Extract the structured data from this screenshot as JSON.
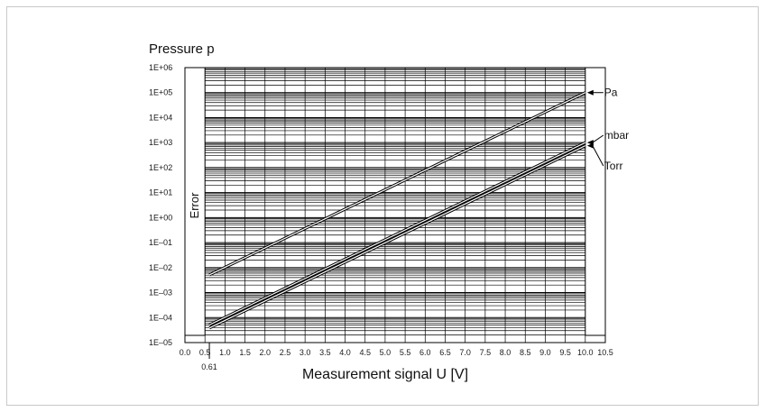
{
  "chart_data": {
    "type": "line",
    "title": "Pressure p",
    "xlabel": "Measurement signal U [V]",
    "ylabel": "",
    "x_ticks": [
      "0.0",
      "0.5",
      "1.0",
      "1.5",
      "2.0",
      "2.5",
      "3.0",
      "3.5",
      "4.0",
      "4.5",
      "5.0",
      "5.5",
      "6.0",
      "6.5",
      "7.0",
      "7.5",
      "8.0",
      "8.5",
      "9.0",
      "9.5",
      "10.0",
      "10.5"
    ],
    "x_marker": "0.61",
    "y_ticks": [
      "1E+06",
      "1E+05",
      "1E+04",
      "1E+03",
      "1E+02",
      "1E+01",
      "1E+00",
      "1E–01",
      "1E–02",
      "1E–03",
      "1E–04",
      "1E–05"
    ],
    "xlim": [
      0,
      10.5
    ],
    "ylim": [
      1e-05,
      1000000
    ],
    "y_scale": "log",
    "grid": true,
    "error_label": "Error",
    "error_regions": [
      [
        0,
        0.5
      ],
      [
        10.0,
        10.5
      ]
    ],
    "series": [
      {
        "name": "Pa",
        "x": [
          0.61,
          10.0
        ],
        "y": [
          0.0051,
          100000
        ]
      },
      {
        "name": "mbar",
        "x": [
          0.61,
          10.0
        ],
        "y": [
          5.1e-05,
          1000
        ]
      },
      {
        "name": "Torr",
        "x": [
          0.61,
          10.0
        ],
        "y": [
          3.84e-05,
          750
        ]
      }
    ]
  }
}
